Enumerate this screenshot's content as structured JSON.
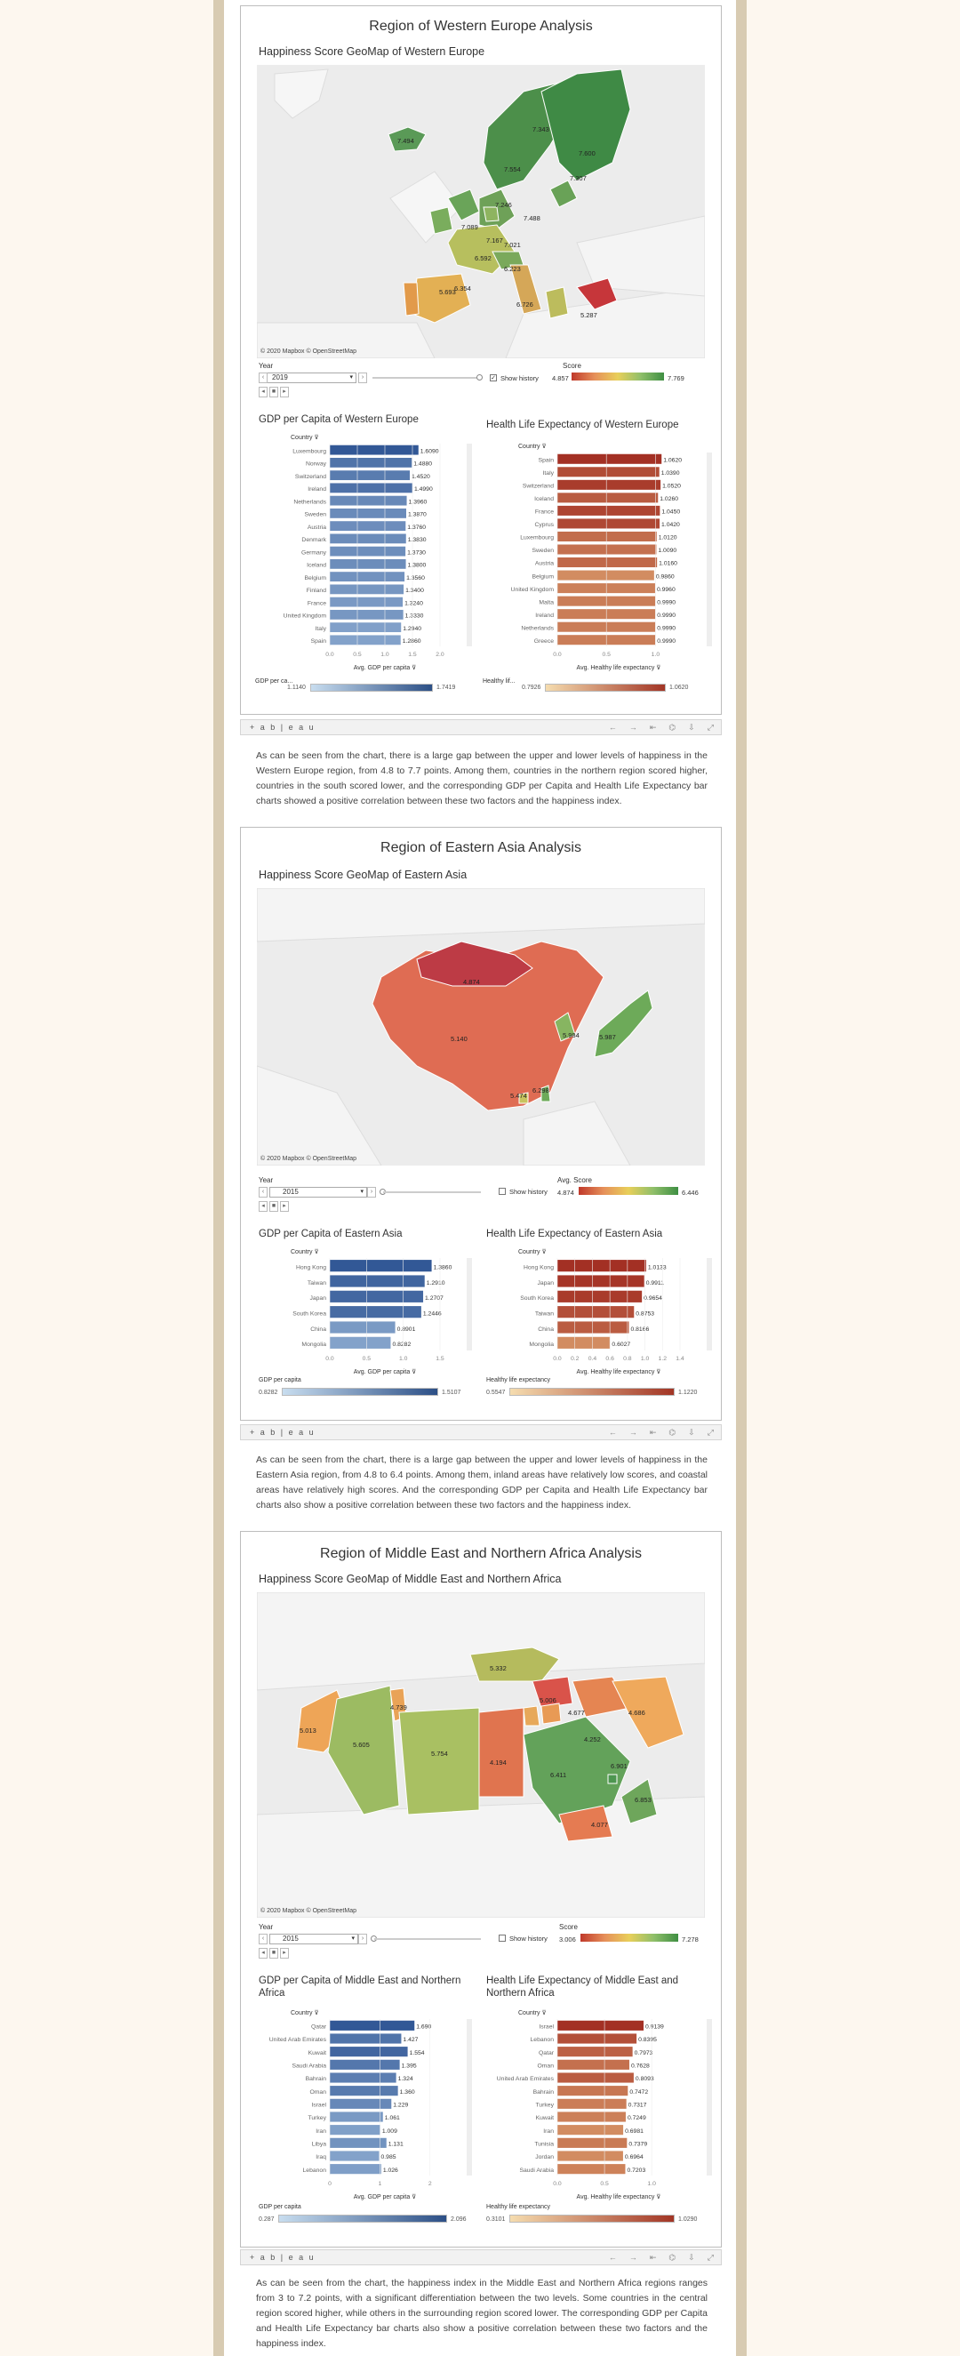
{
  "tableau_logo": "+ a b | e a u",
  "toolbar_icons": [
    "←",
    "→",
    "⇤",
    "⌬",
    "⇩",
    "⤢"
  ],
  "colors": {
    "score_low": "#c0392b",
    "score_mid": "#e8cf5a",
    "score_high": "#3f8f43",
    "gdp_bar": "#5b86bd",
    "hle_bar": "#b3432f"
  },
  "sections": [
    {
      "id": "western-europe",
      "title": "Region of Western Europe Analysis",
      "map_title": "Happiness Score GeoMap of Western Europe",
      "copyright": "© 2020 Mapbox © OpenStreetMap",
      "map_labels": [
        "7.494",
        "7.554",
        "7.343",
        "7.600",
        "7.246",
        "7.488",
        "7.089",
        "7.167",
        "7.021",
        "6.592",
        "6.223",
        "5.693",
        "6.354",
        "6.726",
        "5.287",
        "7.307"
      ],
      "year_label": "Year",
      "year_value": "2019",
      "show_history": "Show history",
      "score_label": "Score",
      "score_min": "4.857",
      "score_max": "7.769",
      "gdp": {
        "title": "GDP per Capita of Western Europe",
        "axis_title": "Avg. GDP per capita",
        "country_header": "Country",
        "ticks": [
          "0.0",
          "0.5",
          "1.0",
          "1.5",
          "2.0"
        ],
        "xmax": 2.0,
        "categories": [
          "Luxembourg",
          "Norway",
          "Switzerland",
          "Ireland",
          "Netherlands",
          "Sweden",
          "Austria",
          "Denmark",
          "Germany",
          "Iceland",
          "Belgium",
          "Finland",
          "France",
          "United Kingdom",
          "Italy",
          "Spain"
        ],
        "values": [
          1.609,
          1.488,
          1.452,
          1.499,
          1.396,
          1.387,
          1.376,
          1.383,
          1.373,
          1.38,
          1.356,
          1.34,
          1.324,
          1.333,
          1.294,
          1.286
        ],
        "labels": [
          "1.6090",
          "1.4880",
          "1.4520",
          "1.4990",
          "1.3960",
          "1.3870",
          "1.3760",
          "1.3830",
          "1.3730",
          "1.3800",
          "1.3560",
          "1.3400",
          "1.3240",
          "1.3330",
          "1.2940",
          "1.2860"
        ],
        "legend_label": "GDP per ca...",
        "legend_min": "1.1140",
        "legend_max": "1.7419"
      },
      "hle": {
        "title": "Health Life Expectancy of Western Europe",
        "axis_title": "Avg. Healthy life expectancy",
        "country_header": "Country",
        "ticks": [
          "0.0",
          "0.5",
          "1.0"
        ],
        "xmax": 1.25,
        "categories": [
          "Spain",
          "Italy",
          "Switzerland",
          "Iceland",
          "France",
          "Cyprus",
          "Luxembourg",
          "Sweden",
          "Austria",
          "Belgium",
          "United Kingdom",
          "Malta",
          "Ireland",
          "Netherlands",
          "Greece"
        ],
        "values": [
          1.062,
          1.039,
          1.052,
          1.026,
          1.045,
          1.042,
          1.012,
          1.009,
          1.016,
          0.986,
          0.996,
          0.999,
          0.999,
          0.999,
          0.999
        ],
        "labels": [
          "1.0620",
          "1.0390",
          "1.0520",
          "1.0260",
          "1.0450",
          "1.0420",
          "1.0120",
          "1.0090",
          "1.0160",
          "0.9860",
          "0.9960",
          "0.9990",
          "0.9990",
          "0.9990",
          "0.9990"
        ],
        "legend_label": "Healthy lif...",
        "legend_min": "0.7926",
        "legend_max": "1.0620"
      },
      "paragraph": "As can be seen from the chart, there is a large gap between the upper and lower levels of happiness in the Western Europe region, from 4.8 to 7.7 points. Among them, countries in the northern region scored higher, countries in the south scored lower, and the corresponding GDP per Capita and Health Life Expectancy bar charts showed a positive correlation between these two factors and the happiness index."
    },
    {
      "id": "eastern-asia",
      "title": "Region of Eastern Asia Analysis",
      "map_title": "Happiness Score GeoMap of Eastern Asia",
      "copyright": "© 2020 Mapbox © OpenStreetMap",
      "map_labels": [
        "4.874",
        "5.140",
        "5.984",
        "5.987",
        "5.474",
        "6.298"
      ],
      "year_label": "Year",
      "year_value": "2015",
      "show_history": "Show history",
      "score_label": "Avg. Score",
      "score_min": "4.874",
      "score_max": "6.446",
      "gdp": {
        "title": "GDP per Capita of Eastern Asia",
        "axis_title": "Avg. GDP per capita",
        "country_header": "Country",
        "ticks": [
          "0.0",
          "0.5",
          "1.0",
          "1.5"
        ],
        "xmax": 1.5,
        "categories": [
          "Hong Kong",
          "Taiwan",
          "Japan",
          "South Korea",
          "China",
          "Mongolia"
        ],
        "values": [
          1.386,
          1.291,
          1.2707,
          1.2446,
          0.8901,
          0.8282
        ],
        "labels": [
          "1.3860",
          "1.2910",
          "1.2707",
          "1.2446",
          "0.8901",
          "0.8282"
        ],
        "legend_label": "GDP per capita",
        "legend_min": "0.8282",
        "legend_max": "1.5107"
      },
      "hle": {
        "title": "Health Life Expectancy of Eastern Asia",
        "axis_title": "Avg. Healthy life expectancy",
        "country_header": "Country",
        "ticks": [
          "0.0",
          "0.2",
          "0.4",
          "0.6",
          "0.8",
          "1.0",
          "1.2",
          "1.4"
        ],
        "xmax": 1.4,
        "categories": [
          "Hong Kong",
          "Japan",
          "South Korea",
          "Taiwan",
          "China",
          "Mongolia"
        ],
        "values": [
          1.0133,
          0.9911,
          0.9654,
          0.8753,
          0.8166,
          0.6027
        ],
        "labels": [
          "1.0133",
          "0.9911",
          "0.9654",
          "0.8753",
          "0.8166",
          "0.6027"
        ],
        "legend_label": "Healthy life expectancy",
        "legend_min": "0.5547",
        "legend_max": "1.1220"
      },
      "paragraph": "As can be seen from the chart, there is a large gap between the upper and lower levels of happiness in the Eastern Asia region, from 4.8 to 6.4 points. Among them, inland areas have relatively low scores, and coastal areas have relatively high scores. And the corresponding GDP per Capita and Health Life Expectancy bar charts also show a positive correlation between these two factors and the happiness index."
    },
    {
      "id": "mena",
      "title": "Region of Middle East and Northern Africa Analysis",
      "map_title": "Happiness Score GeoMap of Middle East and Northern Africa",
      "copyright": "© 2020 Mapbox © OpenStreetMap",
      "map_labels": [
        "5.332",
        "4.739",
        "5.013",
        "5.605",
        "5.754",
        "4.194",
        "6.411",
        "4.677",
        "4.686",
        "4.252",
        "6.901",
        "4.077",
        "6.853",
        "5.006"
      ],
      "year_label": "Year",
      "year_value": "2015",
      "show_history": "Show history",
      "score_label": "Score",
      "score_min": "3.006",
      "score_max": "7.278",
      "gdp": {
        "title": "GDP per Capita of Middle East and Northern Africa",
        "axis_title": "Avg. GDP per capita",
        "country_header": "Country",
        "ticks": [
          "0",
          "1",
          "2"
        ],
        "xmax": 2.2,
        "categories": [
          "Qatar",
          "United Arab Emirates",
          "Kuwait",
          "Saudi Arabia",
          "Bahrain",
          "Oman",
          "Israel",
          "Turkey",
          "Iran",
          "Libya",
          "Iraq",
          "Lebanon"
        ],
        "values": [
          1.69,
          1.427,
          1.554,
          1.395,
          1.324,
          1.36,
          1.229,
          1.061,
          1.009,
          1.131,
          0.985,
          1.026
        ],
        "labels": [
          "1.690",
          "1.427",
          "1.554",
          "1.395",
          "1.324",
          "1.360",
          "1.229",
          "1.061",
          "1.009",
          "1.131",
          "0.985",
          "1.026"
        ],
        "legend_label": "GDP per capita",
        "legend_min": "0.287",
        "legend_max": "2.096"
      },
      "hle": {
        "title": "Health Life Expectancy of Middle East and Northern Africa",
        "axis_title": "Avg. Healthy life expectancy",
        "country_header": "Country",
        "ticks": [
          "0.0",
          "0.5",
          "1.0"
        ],
        "xmax": 1.3,
        "categories": [
          "Israel",
          "Lebanon",
          "Qatar",
          "Oman",
          "United Arab Emirates",
          "Bahrain",
          "Turkey",
          "Kuwait",
          "Iran",
          "Tunisia",
          "Jordan",
          "Saudi Arabia"
        ],
        "values": [
          0.9139,
          0.8395,
          0.7973,
          0.7628,
          0.8093,
          0.7472,
          0.7317,
          0.7249,
          0.6981,
          0.7379,
          0.6964,
          0.7203
        ],
        "labels": [
          "0.9139",
          "0.8395",
          "0.7973",
          "0.7628",
          "0.8093",
          "0.7472",
          "0.7317",
          "0.7249",
          "0.6981",
          "0.7379",
          "0.6964",
          "0.7203"
        ],
        "legend_label": "Healthy life expectancy",
        "legend_min": "0.3101",
        "legend_max": "1.0290"
      },
      "paragraph": "As can be seen from the chart, the happiness index in the Middle East and Northern Africa regions ranges from 3 to 7.2 points, with a significant differentiation between the two levels. Some countries in the central region scored higher, while others in the surrounding region scored lower. The corresponding GDP per Capita and Health Life Expectancy bar charts also show a positive correlation between these two factors and the happiness index."
    }
  ]
}
